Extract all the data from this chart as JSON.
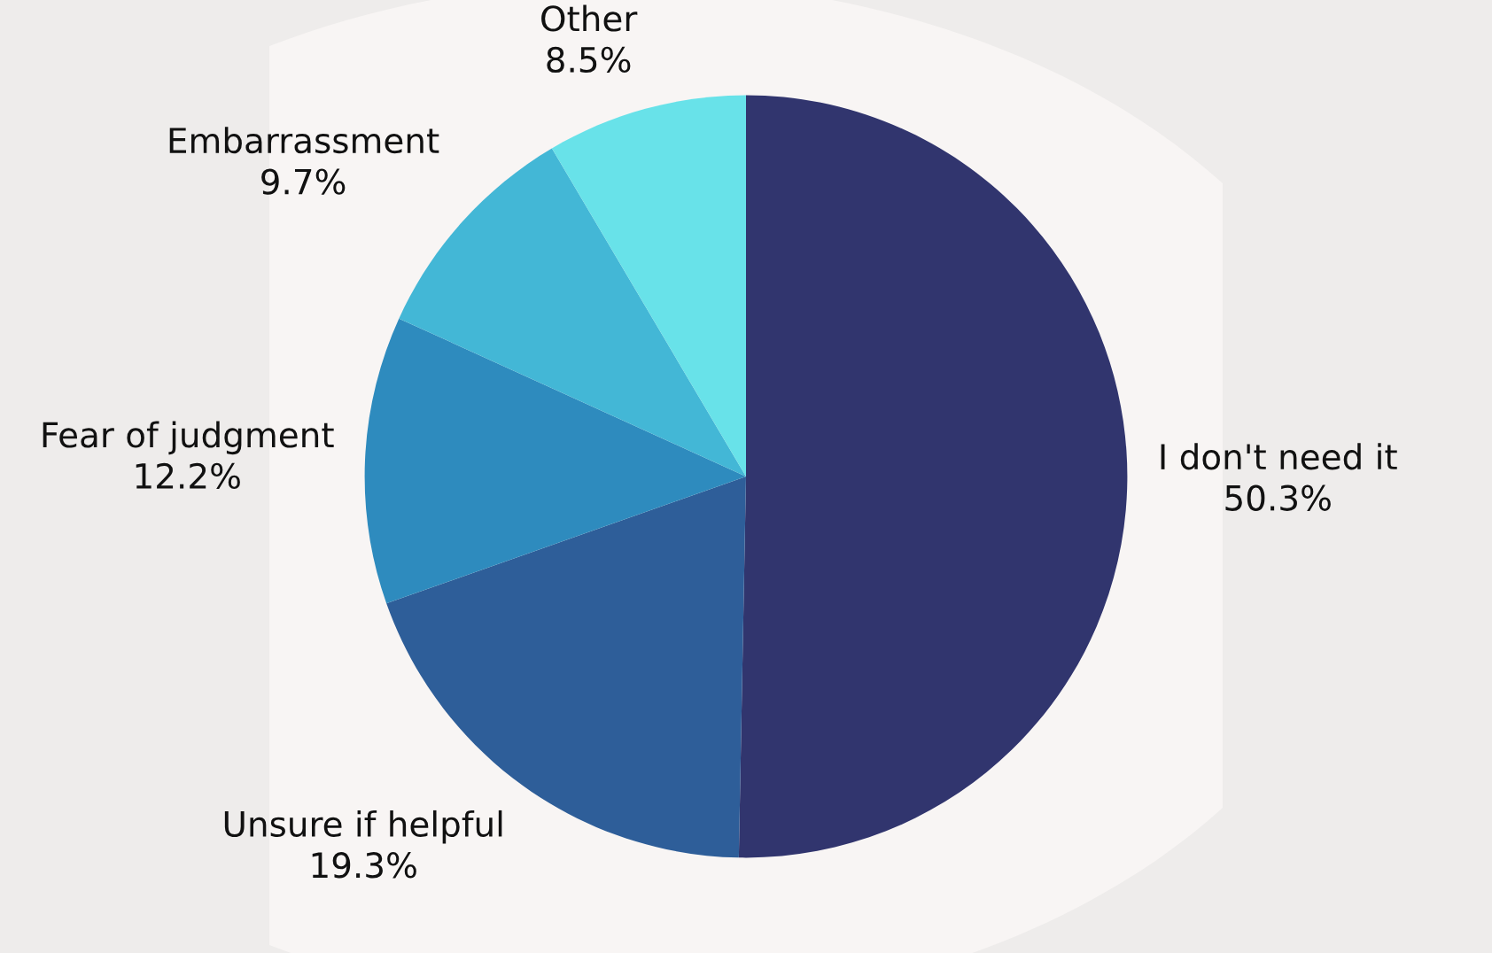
{
  "chart_data": {
    "type": "pie",
    "categories": [
      "I don't need it",
      "Unsure if helpful",
      "Fear of judgment",
      "Embarrassment",
      "Other"
    ],
    "values": [
      50.3,
      19.3,
      12.2,
      9.7,
      8.5
    ],
    "colors": [
      "#31356e",
      "#2e5e99",
      "#2e8bbe",
      "#43b7d6",
      "#68e2e9"
    ],
    "value_labels": [
      "50.3%",
      "19.3%",
      "12.2%",
      "9.7%",
      "8.5%"
    ],
    "legend": false
  }
}
